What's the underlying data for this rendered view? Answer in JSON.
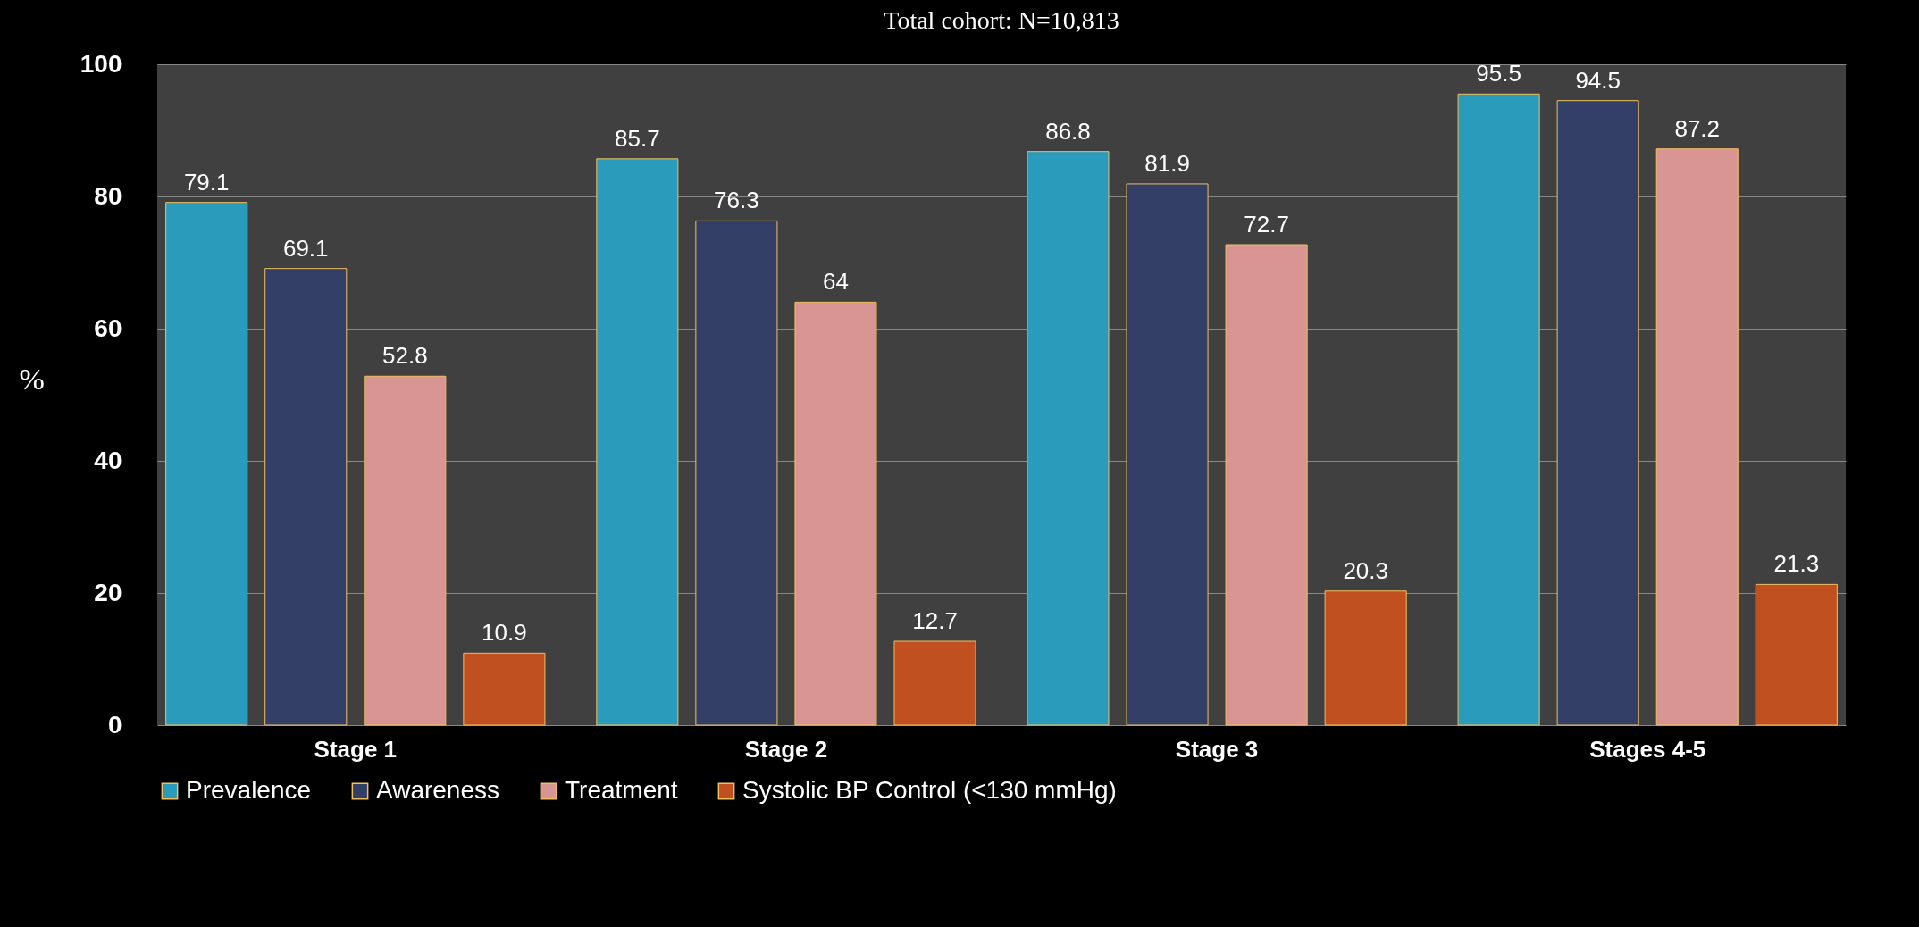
{
  "chart_data": {
    "type": "bar",
    "title": "Total cohort: N=10,813",
    "ylabel": "%",
    "categories": [
      "Stage 1",
      "Stage 2",
      "Stage 3",
      "Stages 4-5"
    ],
    "series": [
      {
        "name": "Prevalence",
        "color": "#2a9bbb",
        "values": [
          79.1,
          85.7,
          86.8,
          95.5
        ]
      },
      {
        "name": "Awareness",
        "color": "#333f66",
        "values": [
          69.1,
          76.3,
          81.9,
          94.5
        ]
      },
      {
        "name": "Treatment",
        "color": "#d99594",
        "values": [
          52.8,
          64,
          72.7,
          87.2
        ]
      },
      {
        "name": "Systolic BP Control (<130 mmHg)",
        "color": "#c0501f",
        "values": [
          10.9,
          12.7,
          20.3,
          21.3
        ]
      }
    ],
    "ylim": [
      0,
      100
    ],
    "yticks": [
      0,
      20,
      40,
      60,
      80,
      100
    ],
    "grid": "y",
    "data_labels": true,
    "legend": "bottom"
  }
}
